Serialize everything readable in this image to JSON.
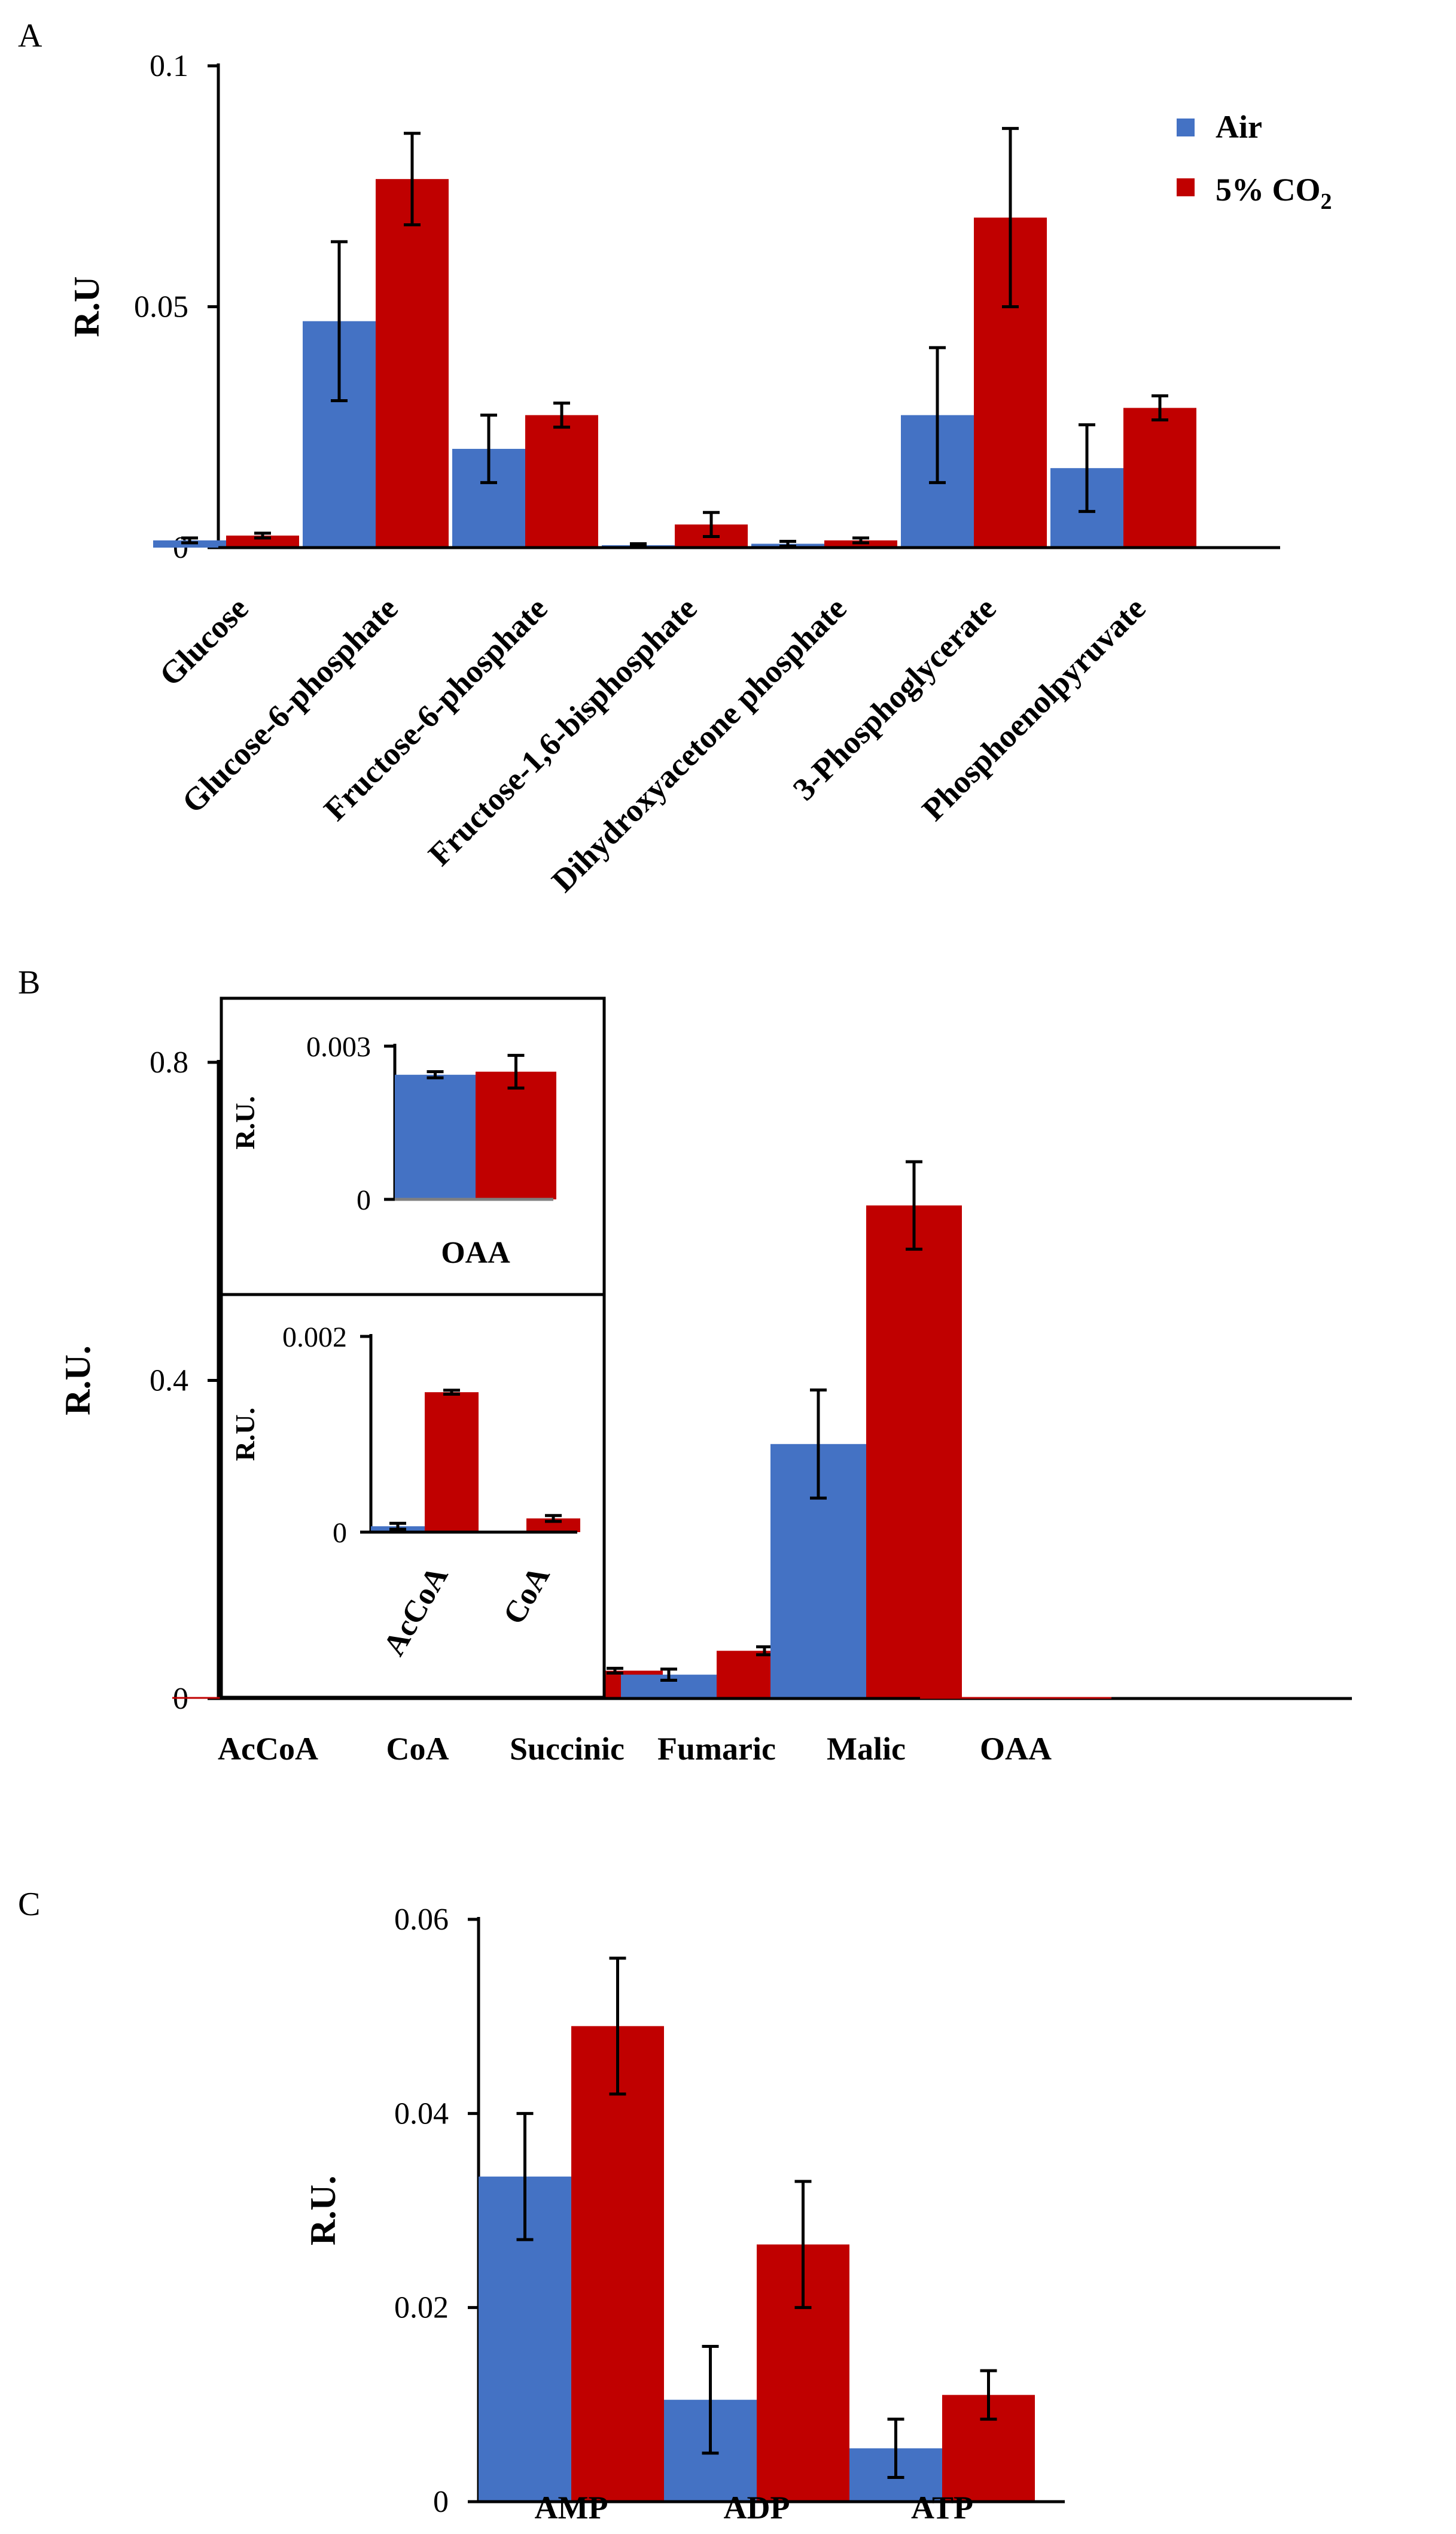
{
  "colors": {
    "air": "#4472c4",
    "co2": "#c00000"
  },
  "legend": {
    "air_label": "Air",
    "co2_label": "5% CO",
    "co2_subscript": "2"
  },
  "chart_data": [
    {
      "id": "A",
      "type": "bar",
      "panel_label": "A",
      "ylabel": "R.U",
      "ylim": [
        0,
        0.1
      ],
      "yticks": [
        0,
        0.05,
        0.1
      ],
      "ytick_labels": [
        "0",
        "0.05",
        "0.1"
      ],
      "categories": [
        "Glucose",
        "Glucose-6-phosphate",
        "Fructose-6-phosphate",
        "Fructose-1,6-bisphosphate",
        "Dihydroxyacetone phosphate",
        "3-Phosphoglycerate",
        "Phosphoenolpyruvate"
      ],
      "series": [
        {
          "name": "Air",
          "values": [
            0.0015,
            0.047,
            0.0205,
            0.0005,
            0.0008,
            0.0275,
            0.0165
          ],
          "errors": [
            0.0005,
            0.0165,
            0.007,
            0.0003,
            0.0005,
            0.014,
            0.009
          ]
        },
        {
          "name": "5% CO2",
          "values": [
            0.0025,
            0.0765,
            0.0275,
            0.0048,
            0.0015,
            0.0685,
            0.029
          ],
          "errors": [
            0.0005,
            0.0095,
            0.0025,
            0.0025,
            0.0005,
            0.0185,
            0.0025
          ]
        }
      ]
    },
    {
      "id": "B",
      "type": "bar",
      "panel_label": "B",
      "ylabel": "R.U.",
      "ylim": [
        0,
        0.8
      ],
      "yticks": [
        0,
        0.4,
        0.8
      ],
      "ytick_labels": [
        "0",
        "0.4",
        "0.8"
      ],
      "categories": [
        "AcCoA",
        "CoA",
        "Succinic",
        "Fumaric",
        "Malic",
        "OAA"
      ],
      "series": [
        {
          "name": "Air",
          "values": [
            0,
            0,
            0.055,
            0.03,
            0.32,
            0
          ],
          "errors": [
            0,
            0,
            0.007,
            0.007,
            0.068,
            0
          ]
        },
        {
          "name": "5% CO2",
          "values": [
            0,
            0,
            0.035,
            0.06,
            0.62,
            0
          ],
          "errors": [
            0,
            0,
            0.003,
            0.005,
            0.055,
            0
          ]
        }
      ]
    },
    {
      "id": "B-inset-OAA",
      "type": "bar",
      "ylabel": "R.U.",
      "ylim": [
        0,
        0.003
      ],
      "yticks": [
        0,
        0.003
      ],
      "ytick_labels": [
        "0",
        "0.003"
      ],
      "categories": [
        "OAA"
      ],
      "series": [
        {
          "name": "Air",
          "values": [
            0.00244
          ],
          "errors": [
            6e-05
          ]
        },
        {
          "name": "5% CO2",
          "values": [
            0.0025
          ],
          "errors": [
            0.00032
          ]
        }
      ]
    },
    {
      "id": "B-inset-CoA",
      "type": "bar",
      "ylabel": "R.U.",
      "ylim": [
        0,
        0.002
      ],
      "yticks": [
        0,
        0.002
      ],
      "ytick_labels": [
        "0",
        "0.002"
      ],
      "categories": [
        "AcCoA",
        "CoA"
      ],
      "series": [
        {
          "name": "Air",
          "values": [
            6e-05,
            0
          ],
          "errors": [
            3e-05,
            0
          ]
        },
        {
          "name": "5% CO2",
          "values": [
            0.00143,
            0.00014
          ],
          "errors": [
            2e-05,
            3e-05
          ]
        }
      ]
    },
    {
      "id": "C",
      "type": "bar",
      "panel_label": "C",
      "ylabel": "R.U.",
      "ylim": [
        0,
        0.06
      ],
      "yticks": [
        0,
        0.02,
        0.04,
        0.06
      ],
      "ytick_labels": [
        "0",
        "0.02",
        "0.04",
        "0.06"
      ],
      "categories": [
        "AMP",
        "ADP",
        "ATP"
      ],
      "series": [
        {
          "name": "Air",
          "values": [
            0.0335,
            0.0105,
            0.0055
          ],
          "errors": [
            0.0065,
            0.0055,
            0.003
          ]
        },
        {
          "name": "5% CO2",
          "values": [
            0.049,
            0.0265,
            0.011
          ],
          "errors": [
            0.007,
            0.0065,
            0.0025
          ]
        }
      ]
    }
  ]
}
